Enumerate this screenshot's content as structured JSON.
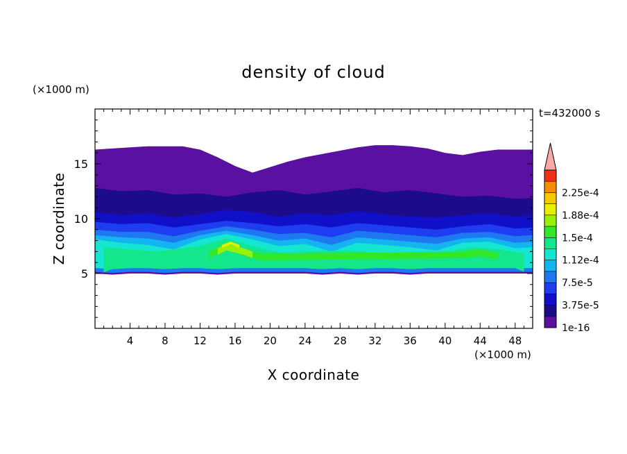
{
  "chart_data": {
    "type": "heatmap",
    "title": "density of cloud",
    "time_label": "t=432000 s",
    "xlabel": "X coordinate",
    "ylabel": "Z coordinate",
    "x_unit": "(×1000 m)",
    "y_unit": "(×1000 m)",
    "xlim": [
      0,
      50
    ],
    "ylim": [
      0,
      20
    ],
    "x_ticks": [
      4,
      8,
      12,
      16,
      20,
      24,
      28,
      32,
      36,
      40,
      44,
      48
    ],
    "y_ticks": [
      5,
      10,
      15
    ],
    "colorbar": {
      "labels": [
        "1e-16",
        "3.75e-5",
        "7.5e-5",
        "1.12e-4",
        "1.5e-4",
        "1.88e-4",
        "2.25e-4"
      ],
      "levels": [
        1e-16,
        1.875e-05,
        3.75e-05,
        5.625e-05,
        7.5e-05,
        9.375e-05,
        0.0001125,
        0.00013125,
        0.00015,
        0.00016875,
        0.0001875,
        0.00020625,
        0.000225,
        0.00024375
      ],
      "colors": [
        "#5a10a0",
        "#1c0b8a",
        "#1010c8",
        "#1e3cf0",
        "#1e78f0",
        "#14b4f0",
        "#14e6d2",
        "#14e68c",
        "#32e628",
        "#96f00a",
        "#e6f000",
        "#f5c800",
        "#f58c00",
        "#f03214"
      ],
      "extend_color": "#f8a8a8"
    },
    "cloud_region": {
      "x": [
        0,
        2,
        4,
        6,
        8,
        10,
        12,
        14,
        16,
        18,
        20,
        22,
        24,
        26,
        28,
        30,
        32,
        34,
        36,
        38,
        40,
        42,
        44,
        46,
        48,
        50
      ],
      "top": [
        16.3,
        16.4,
        16.5,
        16.6,
        16.6,
        16.6,
        16.3,
        15.6,
        14.8,
        14.2,
        14.7,
        15.2,
        15.6,
        15.9,
        16.2,
        16.5,
        16.7,
        16.7,
        16.6,
        16.4,
        16.0,
        15.8,
        16.1,
        16.3,
        16.3,
        16.3
      ],
      "base": [
        5.0,
        4.9,
        5.0,
        5.0,
        4.9,
        5.0,
        5.0,
        4.9,
        5.0,
        5.0,
        5.0,
        5.0,
        5.0,
        4.9,
        5.0,
        4.9,
        5.0,
        5.0,
        4.9,
        5.0,
        5.0,
        5.0,
        5.0,
        5.0,
        5.0,
        5.0
      ],
      "layers": [
        {
          "level": 1,
          "points": [
            [
              0,
              12.8
            ],
            [
              3,
              12.5
            ],
            [
              6,
              12.6
            ],
            [
              9,
              12.2
            ],
            [
              12,
              12.3
            ],
            [
              15,
              12.0
            ],
            [
              18,
              12.4
            ],
            [
              21,
              12.6
            ],
            [
              24,
              12.2
            ],
            [
              27,
              12.5
            ],
            [
              30,
              12.8
            ],
            [
              33,
              12.4
            ],
            [
              36,
              12.6
            ],
            [
              39,
              12.3
            ],
            [
              42,
              12.0
            ],
            [
              45,
              12.1
            ],
            [
              48,
              11.8
            ],
            [
              50,
              11.9
            ]
          ]
        },
        {
          "level": 2,
          "points": [
            [
              0,
              10.6
            ],
            [
              3,
              10.3
            ],
            [
              6,
              10.5
            ],
            [
              9,
              10.1
            ],
            [
              12,
              10.4
            ],
            [
              15,
              10.8
            ],
            [
              18,
              10.6
            ],
            [
              21,
              10.2
            ],
            [
              24,
              10.5
            ],
            [
              27,
              10.3
            ],
            [
              30,
              10.7
            ],
            [
              33,
              10.4
            ],
            [
              36,
              10.2
            ],
            [
              39,
              10.1
            ],
            [
              42,
              10.3
            ],
            [
              45,
              10.5
            ],
            [
              48,
              10.2
            ],
            [
              50,
              10.3
            ]
          ]
        },
        {
          "level": 3,
          "points": [
            [
              0,
              9.7
            ],
            [
              3,
              9.5
            ],
            [
              6,
              9.6
            ],
            [
              9,
              9.2
            ],
            [
              12,
              9.5
            ],
            [
              15,
              9.8
            ],
            [
              18,
              9.6
            ],
            [
              21,
              9.3
            ],
            [
              24,
              9.5
            ],
            [
              27,
              9.2
            ],
            [
              30,
              9.6
            ],
            [
              33,
              9.4
            ],
            [
              36,
              9.2
            ],
            [
              39,
              9.0
            ],
            [
              42,
              9.3
            ],
            [
              45,
              9.5
            ],
            [
              48,
              9.1
            ],
            [
              50,
              9.2
            ]
          ]
        },
        {
          "level": 4,
          "points": [
            [
              0,
              9.0
            ],
            [
              3,
              8.8
            ],
            [
              6,
              8.8
            ],
            [
              9,
              8.4
            ],
            [
              12,
              8.9
            ],
            [
              15,
              9.3
            ],
            [
              18,
              9.0
            ],
            [
              21,
              8.6
            ],
            [
              24,
              8.7
            ],
            [
              27,
              8.3
            ],
            [
              30,
              8.9
            ],
            [
              33,
              8.7
            ],
            [
              36,
              8.5
            ],
            [
              39,
              8.3
            ],
            [
              42,
              8.7
            ],
            [
              45,
              8.8
            ],
            [
              48,
              8.4
            ],
            [
              50,
              8.5
            ]
          ]
        },
        {
          "level": 5,
          "points": [
            [
              0,
              8.5
            ],
            [
              3,
              8.3
            ],
            [
              6,
              8.2
            ],
            [
              9,
              7.8
            ],
            [
              12,
              8.5
            ],
            [
              15,
              8.9
            ],
            [
              18,
              8.5
            ],
            [
              21,
              8.0
            ],
            [
              24,
              8.2
            ],
            [
              27,
              7.6
            ],
            [
              30,
              8.3
            ],
            [
              33,
              8.1
            ],
            [
              36,
              7.9
            ],
            [
              39,
              7.7
            ],
            [
              42,
              8.2
            ],
            [
              45,
              8.3
            ],
            [
              48,
              7.8
            ],
            [
              50,
              7.9
            ]
          ]
        },
        {
          "level": 6,
          "points": [
            [
              0,
              8.1
            ],
            [
              3,
              7.8
            ],
            [
              6,
              7.6
            ],
            [
              9,
              7.2
            ],
            [
              12,
              8.1
            ],
            [
              15,
              8.6
            ],
            [
              18,
              8.1
            ],
            [
              21,
              7.5
            ],
            [
              24,
              7.7
            ],
            [
              27,
              7.0
            ],
            [
              30,
              7.8
            ],
            [
              33,
              7.6
            ],
            [
              36,
              7.4
            ],
            [
              39,
              7.1
            ],
            [
              42,
              7.8
            ],
            [
              45,
              7.9
            ],
            [
              48,
              7.3
            ],
            [
              50,
              7.4
            ]
          ]
        },
        {
          "level": 7,
          "points": [
            [
              1,
              7.4
            ],
            [
              4,
              7.2
            ],
            [
              7,
              7.0
            ],
            [
              12,
              7.5
            ],
            [
              15,
              8.2
            ],
            [
              18,
              7.5
            ],
            [
              21,
              6.9
            ],
            [
              24,
              7.0
            ],
            [
              29,
              7.1
            ],
            [
              32,
              6.9
            ],
            [
              36,
              6.8
            ],
            [
              40,
              6.9
            ],
            [
              43,
              7.4
            ],
            [
              46,
              7.2
            ],
            [
              49,
              6.8
            ]
          ]
        },
        {
          "level": 8,
          "points": [
            [
              13,
              7.0
            ],
            [
              15,
              7.8
            ],
            [
              17,
              7.2
            ],
            [
              19,
              6.8
            ],
            [
              42,
              7.0
            ],
            [
              44,
              7.2
            ],
            [
              46,
              6.9
            ]
          ]
        },
        {
          "level": 9,
          "points": [
            [
              14,
              7.3
            ],
            [
              15,
              7.7
            ],
            [
              17,
              7.3
            ],
            [
              18,
              7.0
            ]
          ]
        },
        {
          "level": 10,
          "points": [
            [
              14.5,
              7.6
            ],
            [
              15.5,
              7.9
            ],
            [
              16.5,
              7.6
            ]
          ]
        }
      ]
    }
  }
}
